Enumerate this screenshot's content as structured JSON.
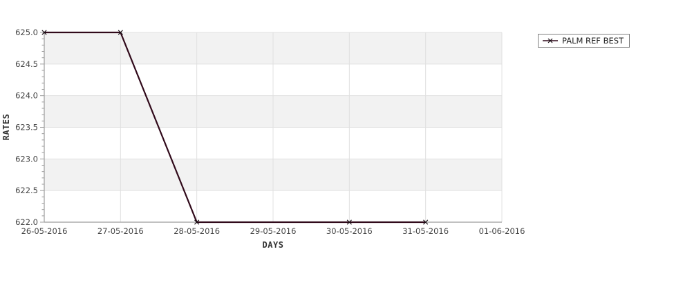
{
  "chart_data": {
    "type": "line",
    "title": "",
    "xlabel": "DAYS",
    "ylabel": "RATES",
    "x_categories": [
      "26-05-2016",
      "27-05-2016",
      "28-05-2016",
      "29-05-2016",
      "30-05-2016",
      "31-05-2016",
      "01-06-2016"
    ],
    "y_ticks": [
      "622.0",
      "622.5",
      "623.0",
      "623.5",
      "624.0",
      "624.5",
      "625.0"
    ],
    "ylim": [
      622.0,
      625.0
    ],
    "y_minor_step": 0.1,
    "grid": true,
    "band_fill_alternating": true,
    "legend_position": "right",
    "series": [
      {
        "name": "PALM REF BEST",
        "marker": "x",
        "color": "#310a1b",
        "points": [
          {
            "x": "26-05-2016",
            "y": 625.0
          },
          {
            "x": "27-05-2016",
            "y": 625.0
          },
          {
            "x": "28-05-2016",
            "y": 622.0
          },
          {
            "x": "30-05-2016",
            "y": 622.0
          },
          {
            "x": "31-05-2016",
            "y": 622.0
          }
        ]
      }
    ]
  },
  "colors": {
    "background": "#ffffff",
    "band": "#f2f2f2",
    "grid": "#e0e0e0",
    "axis": "#9c9c9c",
    "tick_text": "#444444",
    "axis_title": "#333333",
    "marker": "#1a1016",
    "legend_border": "#7f7f7f",
    "legend_text": "#1a1a1a"
  }
}
